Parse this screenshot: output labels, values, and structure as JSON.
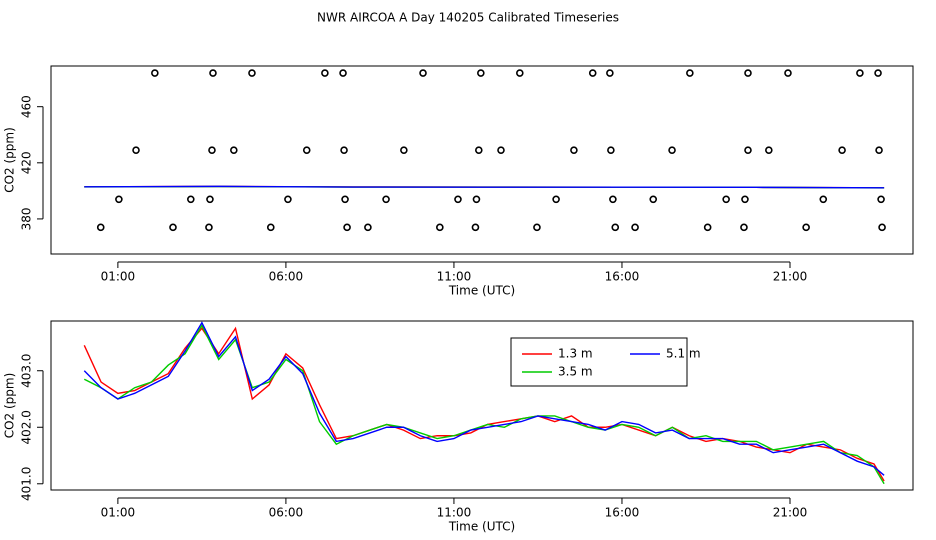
{
  "chart_data": [
    {
      "type": "line",
      "title": "NWR AIRCOA A  Day 140205  Calibrated Timeseries",
      "xlabel": "Time (UTC)",
      "ylabel": "CO2 (ppm)",
      "xlim": [
        -0.99,
        24.66
      ],
      "ylim": [
        355,
        489
      ],
      "xticks": [
        {
          "value": 1,
          "label": "01:00"
        },
        {
          "value": 6,
          "label": "06:00"
        },
        {
          "value": 11,
          "label": "11:00"
        },
        {
          "value": 16,
          "label": "16:00"
        },
        {
          "value": 21,
          "label": "21:00"
        }
      ],
      "yticks": [
        380,
        420,
        460
      ],
      "series": [
        {
          "color": "#ff0000",
          "x": [
            0,
            4,
            8,
            12,
            16,
            20,
            23.8
          ],
          "values": [
            402.9,
            403.2,
            402.8,
            402.7,
            402.6,
            402.5,
            402.2
          ]
        },
        {
          "color": "#00cc00",
          "x": [
            0,
            4,
            8,
            12,
            16,
            20,
            23.8
          ],
          "values": [
            402.8,
            403.1,
            402.7,
            402.7,
            402.6,
            402.5,
            402.1
          ]
        },
        {
          "color": "#0000ff",
          "x": [
            0,
            4,
            8,
            12,
            16,
            20,
            23.8
          ],
          "values": [
            402.9,
            403.2,
            402.7,
            402.6,
            402.6,
            402.5,
            402.2
          ]
        },
        {
          "type": "scatter",
          "color": "#000000",
          "x": [
            2.1,
            3.83,
            4.99,
            7.16,
            7.7,
            10.08,
            11.8,
            12.96,
            15.13,
            15.64,
            18.02,
            19.75,
            20.94,
            23.08,
            23.62,
            1.54,
            3.8,
            4.45,
            6.62,
            7.73,
            9.51,
            11.74,
            12.4,
            14.57,
            15.67,
            17.49,
            19.75,
            20.37,
            22.55,
            23.65,
            1.03,
            3.17,
            3.74,
            6.06,
            7.76,
            8.98,
            11.12,
            11.67,
            14.04,
            15.73,
            16.93,
            19.1,
            19.66,
            21.99,
            23.71,
            0.49,
            2.64,
            3.71,
            5.55,
            7.82,
            8.44,
            10.58,
            11.64,
            13.47,
            15.8,
            16.39,
            18.55,
            19.63,
            21.48,
            23.74
          ],
          "values": [
            484,
            484,
            484,
            484,
            484,
            484,
            484,
            484,
            484,
            484,
            484,
            484,
            484,
            484,
            484,
            429,
            429,
            429,
            429,
            429,
            429,
            429,
            429,
            429,
            429,
            429,
            429,
            429,
            429,
            429,
            394,
            394,
            394,
            394,
            394,
            394,
            394,
            394,
            394,
            394,
            394,
            394,
            394,
            394,
            394,
            374,
            374,
            374,
            374,
            374,
            374,
            374,
            374,
            374,
            374,
            374,
            374,
            374,
            374,
            374
          ]
        }
      ]
    },
    {
      "type": "line",
      "xlabel": "Time (UTC)",
      "ylabel": "CO2 (ppm)",
      "xlim": [
        -0.99,
        24.66
      ],
      "ylim": [
        400.89,
        403.88
      ],
      "xticks": [
        {
          "value": 1,
          "label": "01:00"
        },
        {
          "value": 6,
          "label": "06:00"
        },
        {
          "value": 11,
          "label": "11:00"
        },
        {
          "value": 16,
          "label": "16:00"
        },
        {
          "value": 21,
          "label": "21:00"
        }
      ],
      "yticks": [
        {
          "value": 401,
          "label": "401.0"
        },
        {
          "value": 402,
          "label": "402.0"
        },
        {
          "value": 403,
          "label": "403.0"
        }
      ],
      "legend": "top-center",
      "x": [
        0,
        0.5,
        1,
        1.5,
        2,
        2.5,
        3,
        3.5,
        4,
        4.5,
        5,
        5.5,
        6,
        6.5,
        7,
        7.5,
        8,
        8.5,
        9,
        9.5,
        10,
        10.5,
        11,
        11.5,
        12,
        12.5,
        13,
        13.5,
        14,
        14.5,
        15,
        15.5,
        16,
        16.5,
        17,
        17.5,
        18,
        18.5,
        19,
        19.5,
        20,
        20.5,
        21,
        21.5,
        22,
        22.5,
        23,
        23.5,
        23.8
      ],
      "series": [
        {
          "name": "1.3 m",
          "color": "#ff0000",
          "values": [
            403.45,
            402.8,
            402.6,
            402.65,
            402.8,
            402.95,
            403.4,
            403.75,
            403.3,
            403.75,
            402.5,
            402.75,
            403.3,
            403.05,
            402.4,
            401.8,
            401.85,
            401.95,
            402.05,
            401.95,
            401.8,
            401.85,
            401.85,
            401.9,
            402.05,
            402.1,
            402.15,
            402.2,
            402.1,
            402.2,
            402.0,
            402.0,
            402.05,
            401.95,
            401.85,
            402.0,
            401.85,
            401.75,
            401.8,
            401.75,
            401.65,
            401.6,
            401.55,
            401.7,
            401.65,
            401.6,
            401.45,
            401.35,
            401.05
          ]
        },
        {
          "name": "3.5 m",
          "color": "#00cc00",
          "values": [
            402.85,
            402.7,
            402.5,
            402.7,
            402.8,
            403.1,
            403.3,
            403.8,
            403.2,
            403.55,
            402.7,
            402.8,
            403.2,
            403.0,
            402.1,
            401.7,
            401.85,
            401.95,
            402.05,
            402.0,
            401.9,
            401.8,
            401.85,
            401.95,
            402.05,
            402.0,
            402.15,
            402.2,
            402.2,
            402.1,
            402.0,
            401.95,
            402.05,
            402.0,
            401.85,
            402.0,
            401.8,
            401.85,
            401.75,
            401.75,
            401.75,
            401.6,
            401.65,
            401.7,
            401.75,
            401.55,
            401.5,
            401.3,
            401.0
          ]
        },
        {
          "name": "5.1 m",
          "color": "#0000ff",
          "values": [
            403.0,
            402.7,
            402.5,
            402.6,
            402.75,
            402.9,
            403.35,
            403.85,
            403.25,
            403.6,
            402.65,
            402.85,
            403.25,
            402.95,
            402.25,
            401.75,
            401.8,
            401.9,
            402.0,
            402.0,
            401.85,
            401.75,
            401.8,
            401.95,
            402.0,
            402.05,
            402.1,
            402.2,
            402.15,
            402.1,
            402.05,
            401.95,
            402.1,
            402.05,
            401.9,
            401.95,
            401.8,
            401.8,
            401.8,
            401.7,
            401.7,
            401.55,
            401.6,
            401.65,
            401.7,
            401.55,
            401.4,
            401.3,
            401.15
          ]
        }
      ]
    }
  ]
}
